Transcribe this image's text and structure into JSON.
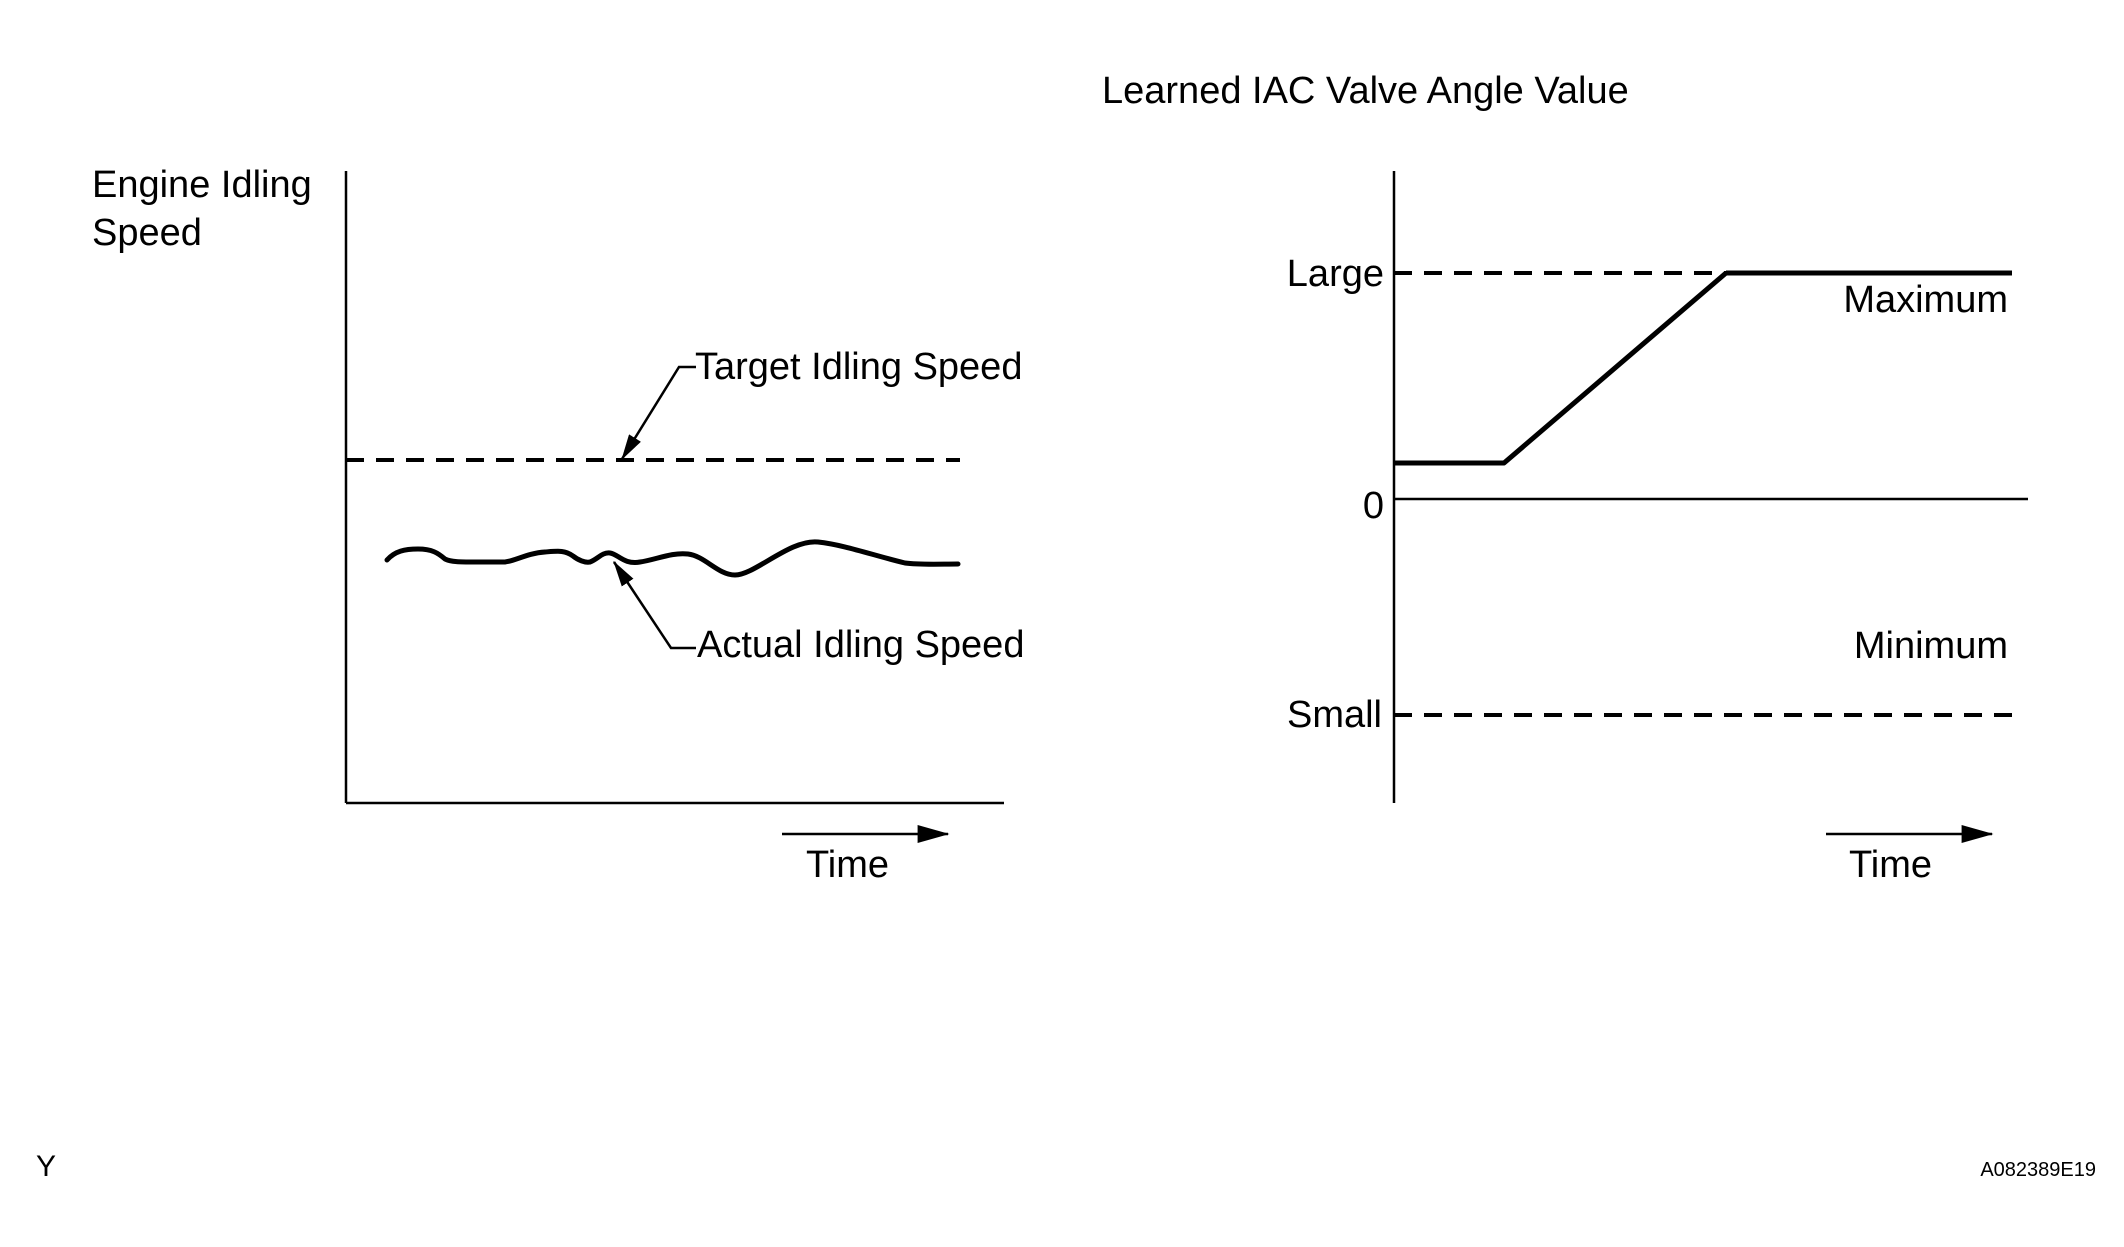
{
  "left_graph": {
    "y_axis_label_line1": "Engine Idling",
    "y_axis_label_line2": "Speed",
    "target_label": "Target Idling Speed",
    "actual_label": "Actual Idling Speed",
    "x_axis_label": "Time"
  },
  "right_graph": {
    "title": "Learned IAC Valve Angle Value",
    "large_label": "Large",
    "zero_label": "0",
    "small_label": "Small",
    "maximum_label": "Maximum",
    "minimum_label": "Minimum",
    "x_axis_label": "Time"
  },
  "footer": {
    "corner_letter": "Y",
    "figure_code": "A082389E19"
  },
  "colors": {
    "ink": "#000000",
    "background": "#ffffff"
  }
}
